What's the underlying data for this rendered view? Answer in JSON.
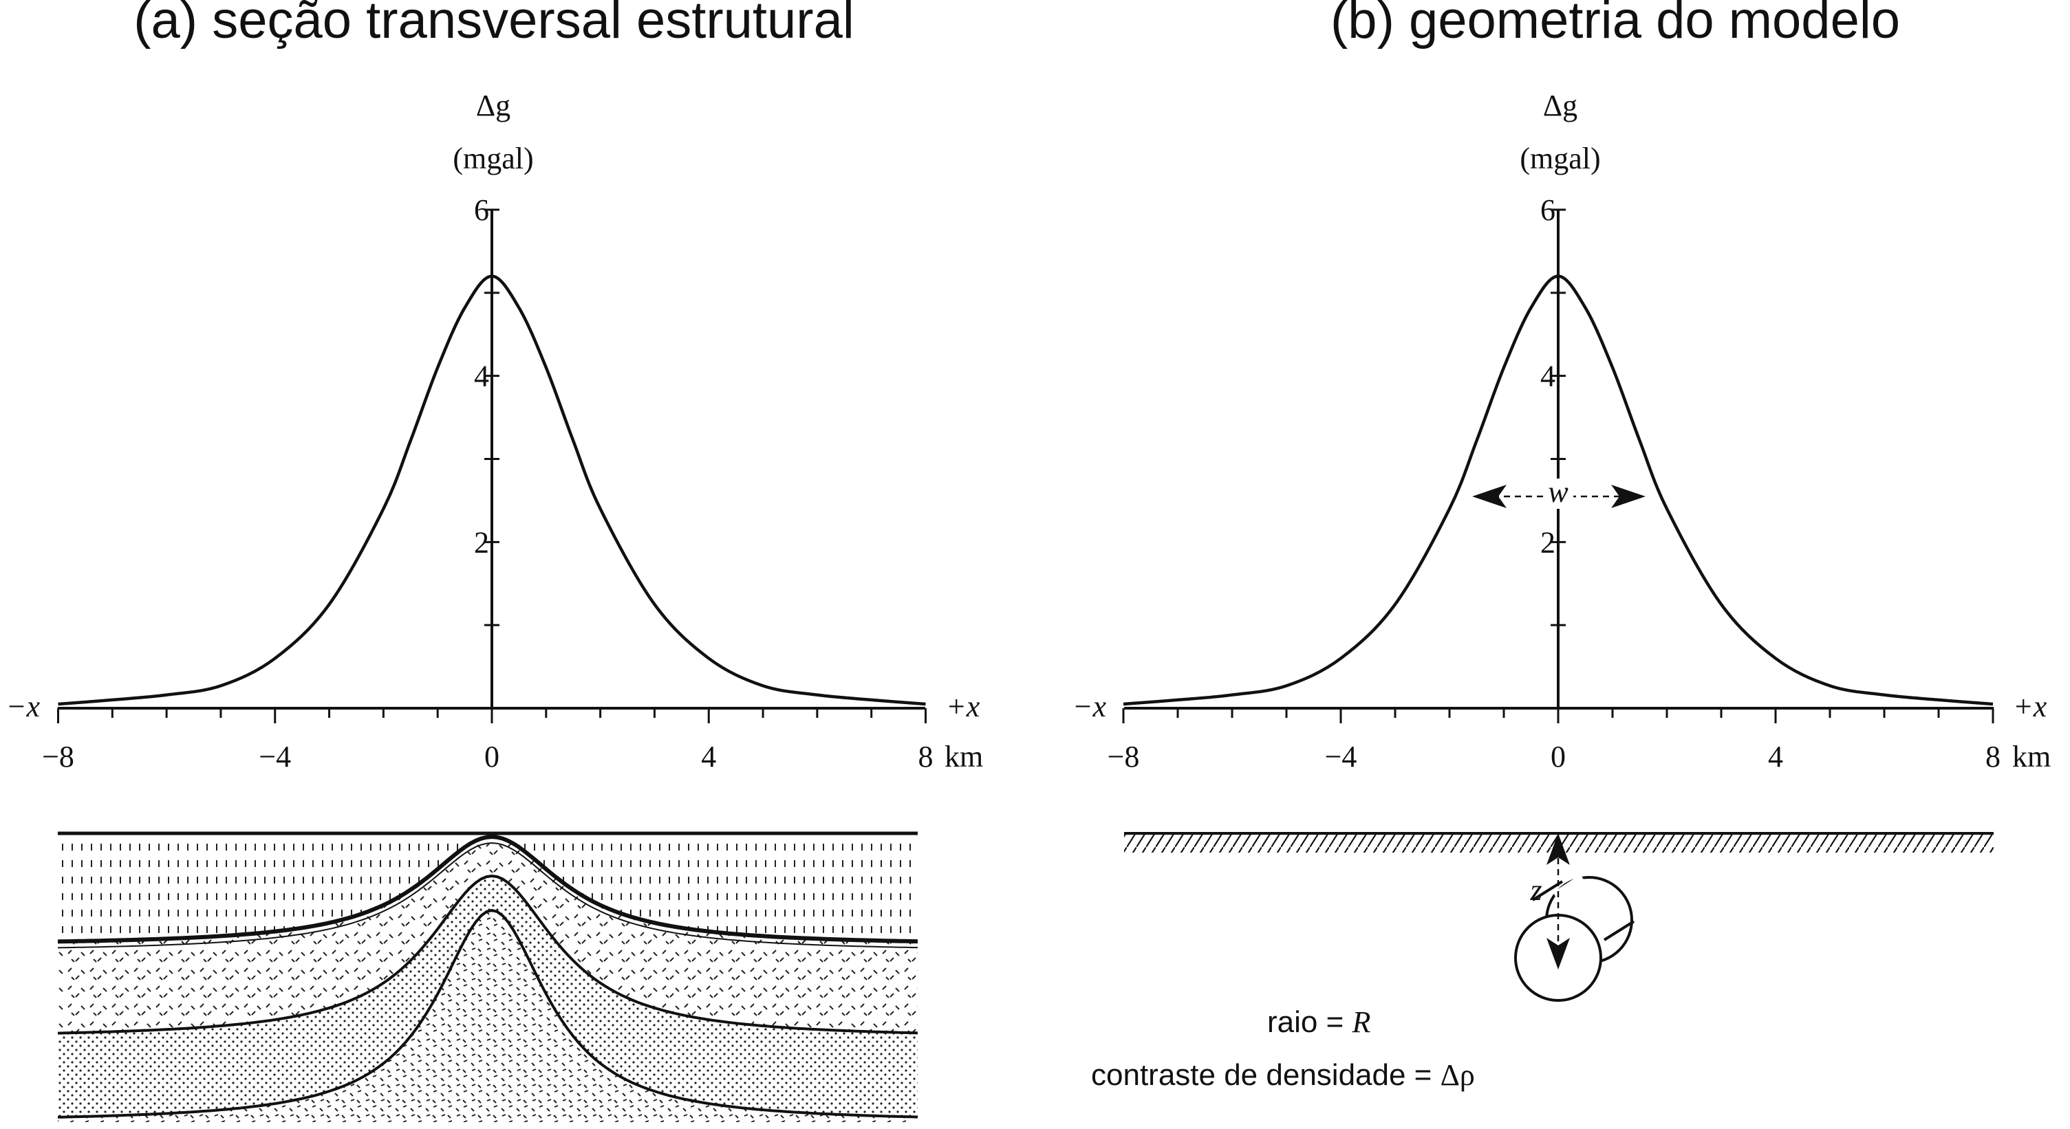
{
  "panels": {
    "a": {
      "title": "(a) seção transversal estrutural"
    },
    "b": {
      "title": "(b) geometria do modelo"
    }
  },
  "axis_text": {
    "y_symbol": "Δg",
    "y_unit": "(mgal)",
    "x_neg": "−x",
    "x_pos": "+x",
    "x_unit": "km"
  },
  "model": {
    "width_label": "w",
    "depth_label": "z",
    "radius_text": "raio = ",
    "radius_symbol": "R",
    "density_text": "contraste de densidade = ",
    "density_symbol": "Δρ"
  },
  "chart_data": [
    {
      "type": "line",
      "title": "(a) seção transversal estrutural",
      "ylabel": "Δg (mgal)",
      "xlabel": "km",
      "xlim": [
        -8,
        8
      ],
      "ylim": [
        0,
        6
      ],
      "x_ticks": [
        -8,
        -4,
        0,
        4,
        8
      ],
      "y_ticks": [
        2,
        4,
        6
      ],
      "series": [
        {
          "x": [
            -8,
            -7,
            -6,
            -5,
            -4,
            -3,
            -2,
            -1.5,
            -1,
            -0.5,
            0,
            0.5,
            1,
            1.5,
            2,
            3,
            4,
            5,
            6,
            7,
            8
          ],
          "values": [
            0.05,
            0.1,
            0.16,
            0.27,
            0.6,
            1.25,
            2.4,
            3.22,
            4.1,
            4.82,
            5.2,
            4.82,
            4.1,
            3.22,
            2.4,
            1.25,
            0.6,
            0.27,
            0.16,
            0.1,
            0.05
          ]
        }
      ]
    },
    {
      "type": "line",
      "title": "(b) geometria do modelo",
      "ylabel": "Δg (mgal)",
      "xlabel": "km",
      "xlim": [
        -8,
        8
      ],
      "ylim": [
        0,
        6
      ],
      "x_ticks": [
        -8,
        -4,
        0,
        4,
        8
      ],
      "y_ticks": [
        2,
        4,
        6
      ],
      "series": [
        {
          "x": [
            -8,
            -7,
            -6,
            -5,
            -4,
            -3,
            -2,
            -1.5,
            -1,
            -0.5,
            0,
            0.5,
            1,
            1.5,
            2,
            3,
            4,
            5,
            6,
            7,
            8
          ],
          "values": [
            0.05,
            0.1,
            0.16,
            0.27,
            0.6,
            1.25,
            2.4,
            3.22,
            4.1,
            4.82,
            5.2,
            4.82,
            4.1,
            3.22,
            2.4,
            1.25,
            0.6,
            0.27,
            0.16,
            0.1,
            0.05
          ]
        }
      ]
    }
  ]
}
